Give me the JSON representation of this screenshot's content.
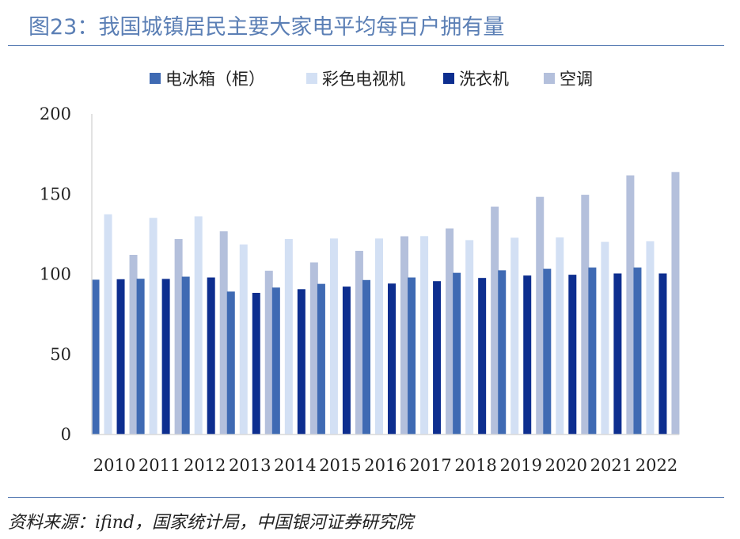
{
  "figure": {
    "title": "图23：我国城镇居民主要大家电平均每百户拥有量",
    "source": "资料来源：ifind，国家统计局，中国银河证券研究院"
  },
  "chart_data": {
    "type": "bar",
    "categories": [
      "2010",
      "2011",
      "2012",
      "2013",
      "2014",
      "2015",
      "2016",
      "2017",
      "2018",
      "2019",
      "2020",
      "2021",
      "2022"
    ],
    "series": [
      {
        "name": "电冰箱（柜）",
        "color": "#3f6ab3",
        "values": [
          96.6,
          97.2,
          98.5,
          89.2,
          91.7,
          94.0,
          96.4,
          98.0,
          100.9,
          102.5,
          103.4,
          104.2,
          104.2
        ]
      },
      {
        "name": "彩色电视机",
        "color": "#d3e0f4",
        "values": [
          137.4,
          135.2,
          136.1,
          118.6,
          122.0,
          122.3,
          122.3,
          123.8,
          121.3,
          122.8,
          123.0,
          120.2,
          120.6
        ]
      },
      {
        "name": "洗衣机",
        "color": "#0d2e8f",
        "values": [
          96.9,
          97.1,
          98.0,
          88.4,
          90.7,
          92.3,
          94.2,
          95.7,
          97.7,
          99.2,
          99.7,
          100.5,
          100.5
        ]
      },
      {
        "name": "空调",
        "color": "#b4c0dc",
        "values": [
          112.1,
          122.0,
          126.8,
          102.2,
          107.4,
          114.6,
          123.7,
          128.6,
          142.2,
          148.3,
          149.6,
          161.7,
          163.8
        ]
      }
    ],
    "ylim": [
      0,
      200
    ],
    "yticks": [
      0,
      50,
      100,
      150,
      200
    ],
    "legend_position": "top"
  }
}
